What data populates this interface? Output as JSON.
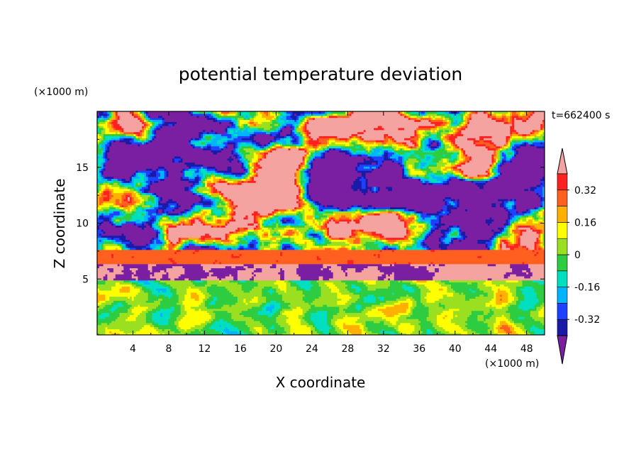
{
  "chart_data": {
    "type": "heatmap",
    "title": "potential temperature deviation",
    "xlabel": "X coordinate",
    "ylabel": "Z coordinate",
    "x_unit": "(×1000 m)",
    "y_unit": "(×1000 m)",
    "time_label": "t=662400 s",
    "xlim": [
      0,
      50
    ],
    "ylim": [
      0,
      20
    ],
    "x_ticks": [
      4,
      8,
      12,
      16,
      20,
      24,
      28,
      32,
      36,
      40,
      44,
      48
    ],
    "y_ticks": [
      5,
      10,
      15
    ],
    "colorbar": {
      "levels": [
        -0.4,
        -0.32,
        -0.24,
        -0.16,
        -0.08,
        0,
        0.08,
        0.16,
        0.24,
        0.32,
        0.4
      ],
      "colors": [
        "#7b1fa2",
        "#1a1aa8",
        "#1f40ff",
        "#00b4ff",
        "#00e0c0",
        "#2ecc40",
        "#9be020",
        "#ffff00",
        "#ffb000",
        "#ff6020",
        "#ff2020",
        "#f4a3a0"
      ],
      "tick_labels": [
        "0.32",
        "0.16",
        "0",
        "-0.16",
        "-0.32"
      ],
      "tick_values": [
        0.32,
        0.16,
        0,
        -0.16,
        -0.32
      ],
      "extends": "both"
    },
    "layers": [
      {
        "z_range": [
          0,
          5
        ],
        "description": "wave-like turbulent field, values mostly -0.24 to 0.32"
      },
      {
        "z_range": [
          6.4,
          7.6
        ],
        "description": "warm band near 0.24 to 0.32"
      },
      {
        "z_range": [
          7.6,
          20
        ],
        "description": "patchy field alternating between > 0.4 and < -0.4"
      }
    ]
  }
}
